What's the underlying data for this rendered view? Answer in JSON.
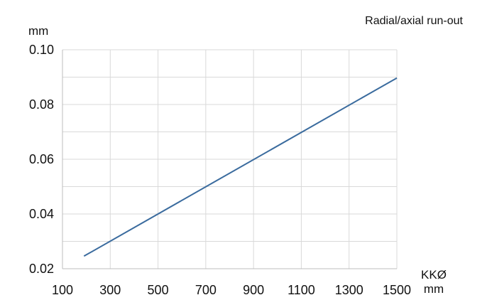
{
  "chart_data": {
    "type": "line",
    "title": "Radial/axial run-out",
    "ylabel": "mm",
    "xlabel_line1": "KKØ",
    "xlabel_line2": "mm",
    "x_ticks": [
      100,
      300,
      500,
      700,
      900,
      1100,
      1300,
      1500
    ],
    "y_ticks": [
      "0.02",
      "0.04",
      "0.06",
      "0.08",
      "0.10"
    ],
    "xlim": [
      100,
      1500
    ],
    "ylim": [
      0.02,
      0.1
    ],
    "grid": true,
    "series": [
      {
        "x": [
          190,
          1500
        ],
        "y": [
          0.0246,
          0.0897
        ],
        "color": "#3a6b9e"
      }
    ]
  }
}
